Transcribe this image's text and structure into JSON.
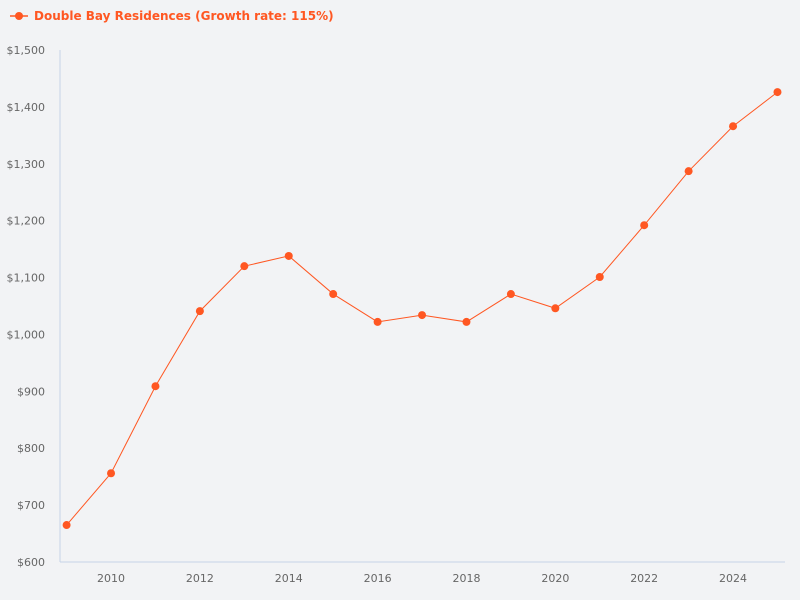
{
  "chart_data": {
    "type": "line",
    "title": "",
    "xlabel": "",
    "ylabel": "",
    "legend_position": "top-left",
    "grid": false,
    "ylim": [
      600,
      1500
    ],
    "xlim": [
      2009,
      2025
    ],
    "y_ticks": [
      "$600",
      "$700",
      "$800",
      "$900",
      "$1,000",
      "$1,100",
      "$1,200",
      "$1,300",
      "$1,400",
      "$1,500"
    ],
    "x_ticks": [
      "2010",
      "2012",
      "2014",
      "2016",
      "2018",
      "2020",
      "2022",
      "2024"
    ],
    "series": [
      {
        "name": "Double Bay Residences (Growth rate: 115%)",
        "color": "#ff5722",
        "x": [
          2009,
          2010,
          2011,
          2012,
          2013,
          2014,
          2015,
          2016,
          2017,
          2018,
          2019,
          2020,
          2021,
          2022,
          2023,
          2024,
          2025
        ],
        "y": [
          665,
          756,
          909,
          1041,
          1120,
          1138,
          1071,
          1022,
          1034,
          1022,
          1071,
          1046,
          1101,
          1192,
          1287,
          1366,
          1426
        ]
      }
    ]
  }
}
